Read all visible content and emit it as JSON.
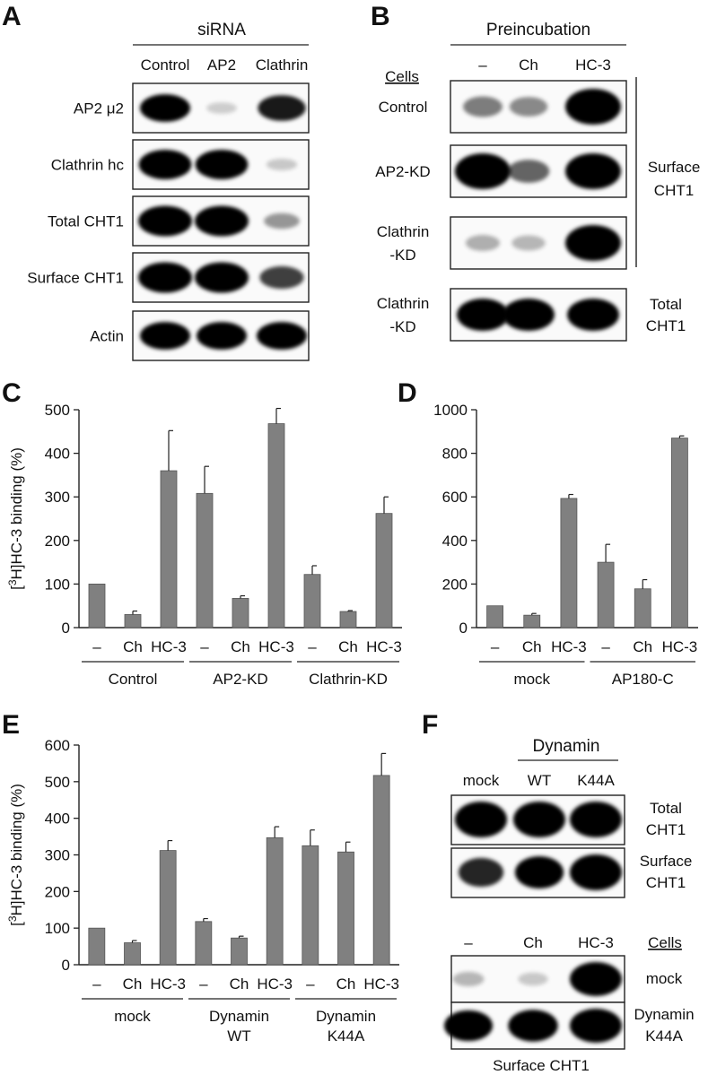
{
  "panel_letters": {
    "A": "A",
    "B": "B",
    "C": "C",
    "D": "D",
    "E": "E",
    "F": "F"
  },
  "blots": {
    "A": {
      "header": "siRNA",
      "columns": [
        "Control",
        "AP2",
        "Clathrin"
      ],
      "rows": [
        {
          "label": "AP2 μ2",
          "intensity": [
            0.85,
            0.03,
            0.75
          ]
        },
        {
          "label": "Clathrin hc",
          "intensity": [
            0.95,
            0.95,
            0.05
          ]
        },
        {
          "label": "Total CHT1",
          "intensity": [
            1.0,
            1.0,
            0.25
          ]
        },
        {
          "label": "Surface CHT1",
          "intensity": [
            1.0,
            1.0,
            0.6
          ]
        },
        {
          "label": "Actin",
          "intensity": [
            0.85,
            0.85,
            0.85
          ]
        }
      ]
    },
    "B": {
      "header": "Preincubation",
      "columns": [
        "–",
        "Ch",
        "HC-3"
      ],
      "cells_label": "Cells",
      "rows": [
        {
          "label": "Control",
          "intensity": [
            0.35,
            0.3,
            1.0
          ]
        },
        {
          "label": "AP2-KD",
          "intensity": [
            1.0,
            0.45,
            1.0
          ]
        },
        {
          "label": "Clathrin -KD",
          "intensity": [
            0.15,
            0.12,
            1.0
          ]
        },
        {
          "label": "Clathrin -KD",
          "intensity": [
            0.85,
            0.85,
            0.85
          ]
        }
      ],
      "bracket_label": "Surface CHT1",
      "total_label": "Total CHT1"
    },
    "F": {
      "header": "Dynamin",
      "columns": [
        "mock",
        "WT",
        "K44A"
      ],
      "rows": [
        {
          "label": "Total CHT1",
          "intensity": [
            1.0,
            1.0,
            1.0
          ]
        },
        {
          "label": "Surface CHT1",
          "intensity": [
            0.7,
            0.85,
            1.0
          ]
        }
      ],
      "lower_columns": [
        "–",
        "Ch",
        "HC-3"
      ],
      "cells_label": "Cells",
      "lower_rows": [
        {
          "label": "mock",
          "intensity": [
            0.12,
            0.05,
            1.0
          ]
        },
        {
          "label": "Dynamin K44A",
          "intensity": [
            0.85,
            0.9,
            1.0
          ]
        }
      ],
      "footer": "Surface CHT1"
    }
  },
  "chart_data": [
    {
      "panel": "C",
      "type": "bar",
      "ylabel": "[3H]HC-3 binding (%)",
      "ylim": [
        0,
        500
      ],
      "yticks": [
        0,
        100,
        200,
        300,
        400,
        500
      ],
      "grid": false,
      "categories": [
        "–",
        "Ch",
        "HC-3",
        "–",
        "Ch",
        "HC-3",
        "–",
        "Ch",
        "HC-3"
      ],
      "values": [
        100,
        30,
        360,
        308,
        67,
        468,
        122,
        37,
        262
      ],
      "errors": [
        0,
        8,
        92,
        62,
        6,
        35,
        20,
        2,
        38
      ],
      "groups": [
        {
          "label": "Control",
          "count": 3
        },
        {
          "label": "AP2-KD",
          "count": 3
        },
        {
          "label": "Clathrin-KD",
          "count": 3
        }
      ]
    },
    {
      "panel": "D",
      "type": "bar",
      "ylabel": "",
      "ylim": [
        0,
        1000
      ],
      "yticks": [
        0,
        200,
        400,
        600,
        800,
        1000
      ],
      "grid": false,
      "categories": [
        "–",
        "Ch",
        "HC-3",
        "–",
        "Ch",
        "HC-3"
      ],
      "values": [
        100,
        57,
        593,
        300,
        178,
        870
      ],
      "errors": [
        0,
        8,
        18,
        82,
        42,
        10
      ],
      "groups": [
        {
          "label": "mock",
          "count": 3
        },
        {
          "label": "AP180-C",
          "count": 3
        }
      ]
    },
    {
      "panel": "E",
      "type": "bar",
      "ylabel": "[3H]HC-3 binding (%)",
      "ylim": [
        0,
        600
      ],
      "yticks": [
        0,
        100,
        200,
        300,
        400,
        500,
        600
      ],
      "grid": false,
      "categories": [
        "–",
        "Ch",
        "HC-3",
        "–",
        "Ch",
        "HC-3",
        "–",
        "Ch",
        "HC-3"
      ],
      "values": [
        100,
        60,
        312,
        118,
        73,
        347,
        325,
        308,
        517
      ],
      "errors": [
        0,
        6,
        27,
        8,
        5,
        30,
        43,
        27,
        60
      ],
      "groups": [
        {
          "label": "mock",
          "count": 3
        },
        {
          "label": "Dynamin WT",
          "count": 3
        },
        {
          "label": "Dynamin K44A",
          "count": 3
        }
      ]
    }
  ],
  "colors": {
    "bar": "#808080",
    "band": "#000000",
    "frame": "#222222"
  }
}
